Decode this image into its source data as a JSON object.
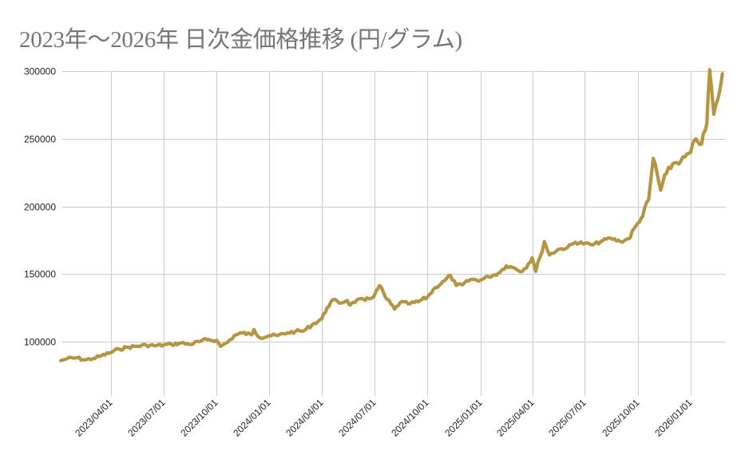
{
  "chart_data": {
    "type": "line",
    "title": "2023年〜2026年 日次金価格推移 (円/グラム)",
    "xlabel": "",
    "ylabel": "",
    "ylim": [
      63000,
      300000
    ],
    "grid": true,
    "legend": null,
    "yticks": [
      100000,
      150000,
      200000,
      250000,
      300000
    ],
    "xticks": [
      "2023/04/01",
      "2023/07/01",
      "2023/10/01",
      "2024/01/01",
      "2024/04/01",
      "2024/07/01",
      "2024/10/01",
      "2025/01/01",
      "2025/04/01",
      "2025/07/01",
      "2025/10/01",
      "2026/01/01"
    ],
    "series": [
      {
        "name": "金価格 (円/グラム)",
        "color": "#b39544",
        "x": [
          "2023/01/04",
          "2023/01/15",
          "2023/02/01",
          "2023/02/15",
          "2023/03/01",
          "2023/03/15",
          "2023/04/01",
          "2023/04/15",
          "2023/05/01",
          "2023/05/15",
          "2023/06/01",
          "2023/06/15",
          "2023/07/01",
          "2023/07/15",
          "2023/08/01",
          "2023/08/15",
          "2023/09/01",
          "2023/09/15",
          "2023/10/01",
          "2023/10/08",
          "2023/10/20",
          "2023/11/01",
          "2023/11/15",
          "2023/12/01",
          "2023/12/05",
          "2023/12/15",
          "2024/01/01",
          "2024/01/15",
          "2024/02/01",
          "2024/02/15",
          "2024/03/01",
          "2024/03/15",
          "2024/04/01",
          "2024/04/10",
          "2024/04/20",
          "2024/05/01",
          "2024/05/15",
          "2024/05/20",
          "2024/06/01",
          "2024/06/15",
          "2024/07/01",
          "2024/07/10",
          "2024/07/20",
          "2024/08/05",
          "2024/08/15",
          "2024/09/01",
          "2024/09/15",
          "2024/10/01",
          "2024/10/15",
          "2024/10/31",
          "2024/11/10",
          "2024/11/20",
          "2024/12/01",
          "2024/12/15",
          "2025/01/01",
          "2025/01/15",
          "2025/02/01",
          "2025/02/15",
          "2025/03/01",
          "2025/03/15",
          "2025/04/01",
          "2025/04/07",
          "2025/04/15",
          "2025/04/22",
          "2025/05/01",
          "2025/05/15",
          "2025/06/01",
          "2025/06/15",
          "2025/07/01",
          "2025/07/15",
          "2025/08/01",
          "2025/08/15",
          "2025/09/01",
          "2025/09/15",
          "2025/10/01",
          "2025/10/10",
          "2025/10/20",
          "2025/10/28",
          "2025/11/10",
          "2025/11/20",
          "2025/12/01",
          "2025/12/15",
          "2026/01/01",
          "2026/01/10",
          "2026/01/20",
          "2026/01/29",
          "2026/02/03",
          "2026/02/10",
          "2026/02/17",
          "2026/02/25"
        ],
        "values": [
          86000,
          87500,
          88000,
          86500,
          87500,
          89500,
          92000,
          94500,
          96000,
          96500,
          97500,
          97000,
          97500,
          98000,
          99000,
          98000,
          100000,
          101500,
          101000,
          96500,
          99500,
          104500,
          106500,
          105000,
          109000,
          103000,
          104500,
          104500,
          106500,
          107500,
          108000,
          112500,
          117000,
          125000,
          131000,
          128500,
          130500,
          127000,
          131000,
          130500,
          134000,
          141500,
          133000,
          124000,
          129000,
          128000,
          129500,
          133000,
          140000,
          145000,
          149000,
          141500,
          142000,
          146000,
          145500,
          148000,
          150500,
          156000,
          154500,
          152000,
          162000,
          152000,
          163000,
          174000,
          164000,
          168000,
          169500,
          173500,
          172500,
          171500,
          174500,
          176500,
          174000,
          176000,
          187500,
          193000,
          205000,
          235500,
          212000,
          224500,
          231500,
          233500,
          240000,
          250000,
          246000,
          261000,
          301000,
          268000,
          279000,
          298000
        ]
      }
    ]
  }
}
